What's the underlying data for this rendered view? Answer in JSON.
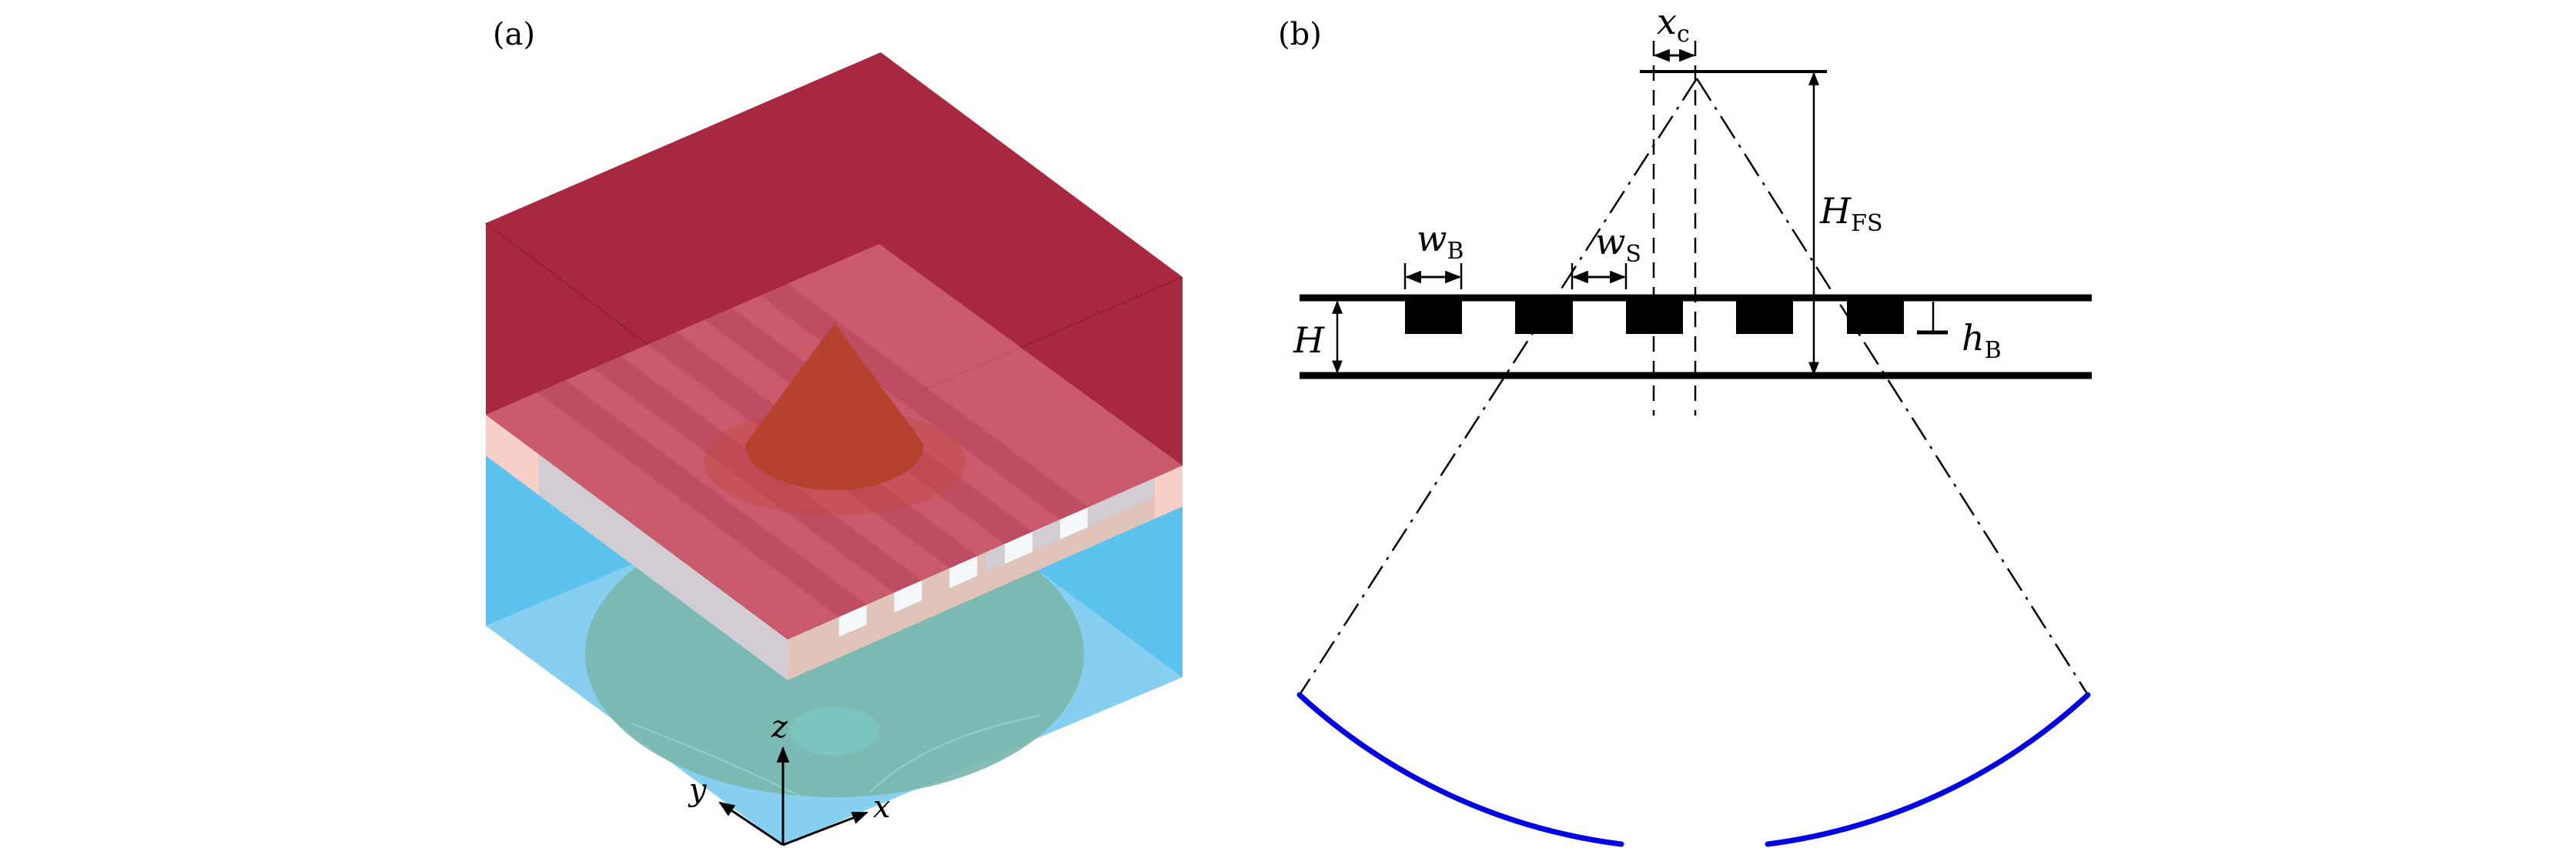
{
  "panel_a": {
    "label": "(a)",
    "axes": {
      "x": "x",
      "y": "y",
      "z": "z"
    },
    "colors": {
      "top_block": "#a8283f",
      "slab": "#f19aa4",
      "slab_side_pink": "#f8cfc7",
      "slab_side_gray": "#d2cdd2",
      "substrate_dark": "#5cc2ee",
      "substrate_light": "#86cff0",
      "disk": "#7bb7ae",
      "cone": "#b5412c"
    }
  },
  "panel_b": {
    "label": "(b)",
    "symbols": {
      "xc": {
        "main": "x",
        "sub": "c"
      },
      "HFS": {
        "main": "H",
        "sub": "FS"
      },
      "wB": {
        "main": "w",
        "sub": "B"
      },
      "wS": {
        "main": "w",
        "sub": "S"
      },
      "H": {
        "main": "H"
      },
      "hB": {
        "main": "h",
        "sub": "B"
      }
    },
    "colors": {
      "arc": "#0000e6",
      "lines": "#000000"
    }
  }
}
